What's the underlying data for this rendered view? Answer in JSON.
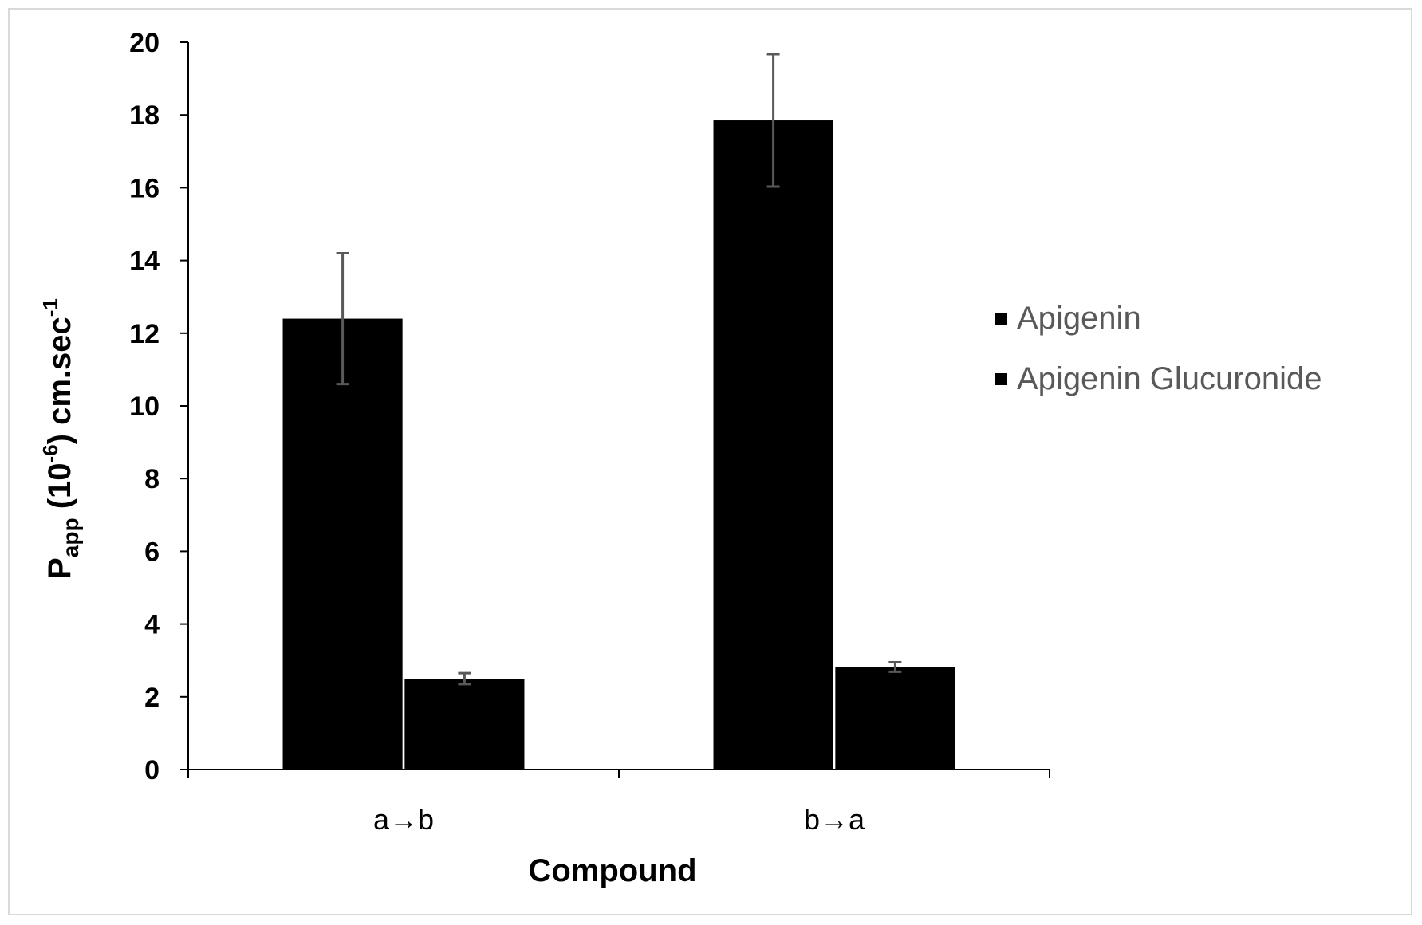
{
  "chart_data": {
    "type": "bar",
    "title": "",
    "xlabel": "Compound",
    "ylabel": {
      "main": "P",
      "sub": "app",
      "open": " (10",
      "exp": "-6",
      "close": ") cm.sec",
      "exp2": "-1"
    },
    "categories": [
      "a→b",
      "b→a"
    ],
    "series": [
      {
        "name": "Apigenin",
        "values": [
          12.4,
          17.85
        ],
        "errors": [
          1.8,
          1.82
        ],
        "color": "#000000"
      },
      {
        "name": "Apigenin Glucuronide",
        "values": [
          2.5,
          2.82
        ],
        "errors": [
          0.15,
          0.13
        ],
        "color": "#000000"
      }
    ],
    "ylim": [
      0,
      20
    ],
    "yticks": [
      0,
      2,
      4,
      6,
      8,
      10,
      12,
      14,
      16,
      18,
      20
    ],
    "grid": false,
    "legend_position": "right",
    "error_bar_color": "#595959",
    "axis_color": "#000000"
  }
}
